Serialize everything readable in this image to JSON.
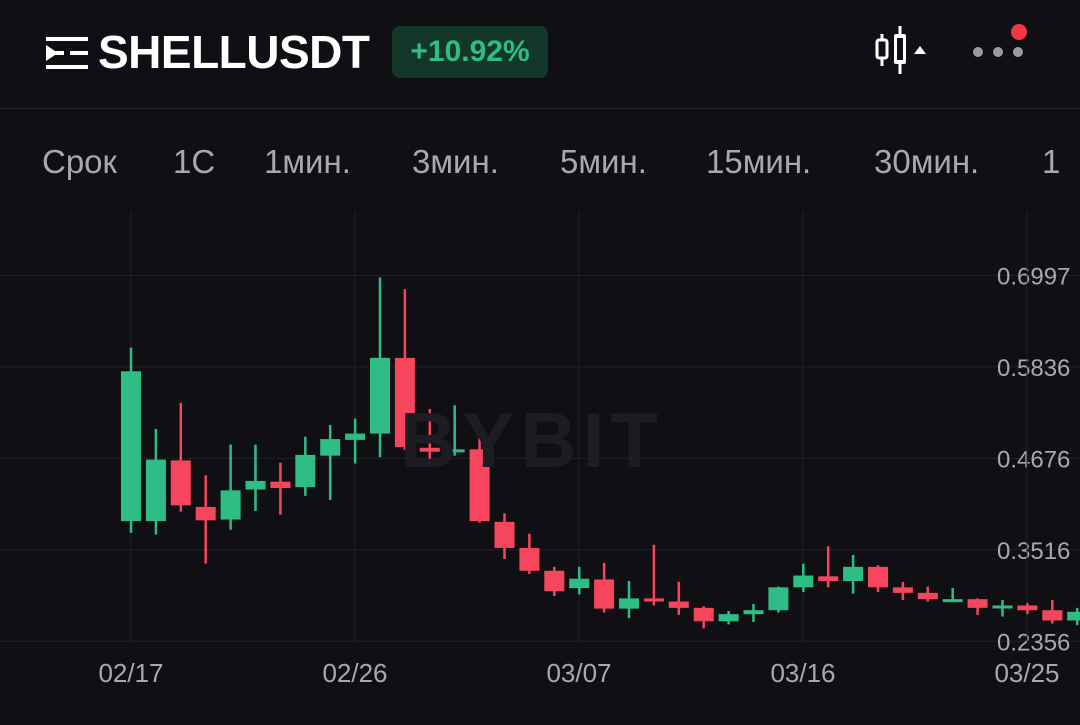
{
  "header": {
    "symbol": "SHELLUSDT",
    "change": "+10.92%",
    "change_color": "#2ebd85",
    "icons": [
      "menu-icon",
      "candlestick-type-icon",
      "more-options-icon"
    ],
    "notification_dot_color": "#f23645"
  },
  "timeframes": {
    "items": [
      "Срок",
      "1С",
      "1мин.",
      "3мин.",
      "5мин.",
      "15мин.",
      "30мин.",
      "1"
    ]
  },
  "watermark": "BYBIT",
  "chart_data": {
    "type": "candlestick",
    "up_color": "#2ebd85",
    "down_color": "#f6465d",
    "x_tick_labels": [
      "02/17",
      "02/26",
      "03/07",
      "03/16",
      "03/25"
    ],
    "y_tick_labels": [
      "0.6997",
      "0.5836",
      "0.4676",
      "0.3516",
      "0.2356"
    ],
    "ylim": [
      0.222,
      0.78
    ],
    "grid": true,
    "candles": [
      {
        "o": 0.388,
        "h": 0.608,
        "l": 0.373,
        "c": 0.578
      },
      {
        "o": 0.388,
        "h": 0.505,
        "l": 0.371,
        "c": 0.466
      },
      {
        "o": 0.465,
        "h": 0.538,
        "l": 0.4,
        "c": 0.408
      },
      {
        "o": 0.406,
        "h": 0.446,
        "l": 0.334,
        "c": 0.389
      },
      {
        "o": 0.39,
        "h": 0.485,
        "l": 0.377,
        "c": 0.427
      },
      {
        "o": 0.428,
        "h": 0.485,
        "l": 0.401,
        "c": 0.439
      },
      {
        "o": 0.438,
        "h": 0.462,
        "l": 0.396,
        "c": 0.43
      },
      {
        "o": 0.431,
        "h": 0.495,
        "l": 0.42,
        "c": 0.472
      },
      {
        "o": 0.471,
        "h": 0.51,
        "l": 0.415,
        "c": 0.492
      },
      {
        "o": 0.491,
        "h": 0.518,
        "l": 0.461,
        "c": 0.499
      },
      {
        "o": 0.499,
        "h": 0.697,
        "l": 0.469,
        "c": 0.595
      },
      {
        "o": 0.595,
        "h": 0.682,
        "l": 0.478,
        "c": 0.482
      },
      {
        "o": 0.481,
        "h": 0.53,
        "l": 0.461,
        "c": 0.476
      },
      {
        "o": 0.476,
        "h": 0.535,
        "l": 0.471,
        "c": 0.479
      },
      {
        "o": 0.479,
        "h": 0.495,
        "l": 0.386,
        "c": 0.388
      },
      {
        "o": 0.387,
        "h": 0.398,
        "l": 0.34,
        "c": 0.354
      },
      {
        "o": 0.354,
        "h": 0.372,
        "l": 0.321,
        "c": 0.325
      },
      {
        "o": 0.325,
        "h": 0.33,
        "l": 0.293,
        "c": 0.299
      },
      {
        "o": 0.303,
        "h": 0.33,
        "l": 0.295,
        "c": 0.315
      },
      {
        "o": 0.314,
        "h": 0.335,
        "l": 0.272,
        "c": 0.277
      },
      {
        "o": 0.277,
        "h": 0.312,
        "l": 0.265,
        "c": 0.29
      },
      {
        "o": 0.29,
        "h": 0.358,
        "l": 0.281,
        "c": 0.286
      },
      {
        "o": 0.286,
        "h": 0.311,
        "l": 0.269,
        "c": 0.278
      },
      {
        "o": 0.278,
        "h": 0.28,
        "l": 0.252,
        "c": 0.261
      },
      {
        "o": 0.261,
        "h": 0.274,
        "l": 0.257,
        "c": 0.27
      },
      {
        "o": 0.27,
        "h": 0.283,
        "l": 0.26,
        "c": 0.275
      },
      {
        "o": 0.275,
        "h": 0.305,
        "l": 0.272,
        "c": 0.304
      },
      {
        "o": 0.304,
        "h": 0.334,
        "l": 0.298,
        "c": 0.319
      },
      {
        "o": 0.318,
        "h": 0.356,
        "l": 0.304,
        "c": 0.312
      },
      {
        "o": 0.312,
        "h": 0.345,
        "l": 0.296,
        "c": 0.33
      },
      {
        "o": 0.33,
        "h": 0.332,
        "l": 0.298,
        "c": 0.304
      },
      {
        "o": 0.304,
        "h": 0.311,
        "l": 0.288,
        "c": 0.297
      },
      {
        "o": 0.297,
        "h": 0.305,
        "l": 0.286,
        "c": 0.289
      },
      {
        "o": 0.289,
        "h": 0.303,
        "l": 0.286,
        "c": 0.289
      },
      {
        "o": 0.289,
        "h": 0.29,
        "l": 0.269,
        "c": 0.278
      },
      {
        "o": 0.278,
        "h": 0.288,
        "l": 0.267,
        "c": 0.281
      },
      {
        "o": 0.281,
        "h": 0.284,
        "l": 0.27,
        "c": 0.275
      },
      {
        "o": 0.275,
        "h": 0.288,
        "l": 0.258,
        "c": 0.262
      },
      {
        "o": 0.262,
        "h": 0.278,
        "l": 0.256,
        "c": 0.273
      }
    ]
  }
}
